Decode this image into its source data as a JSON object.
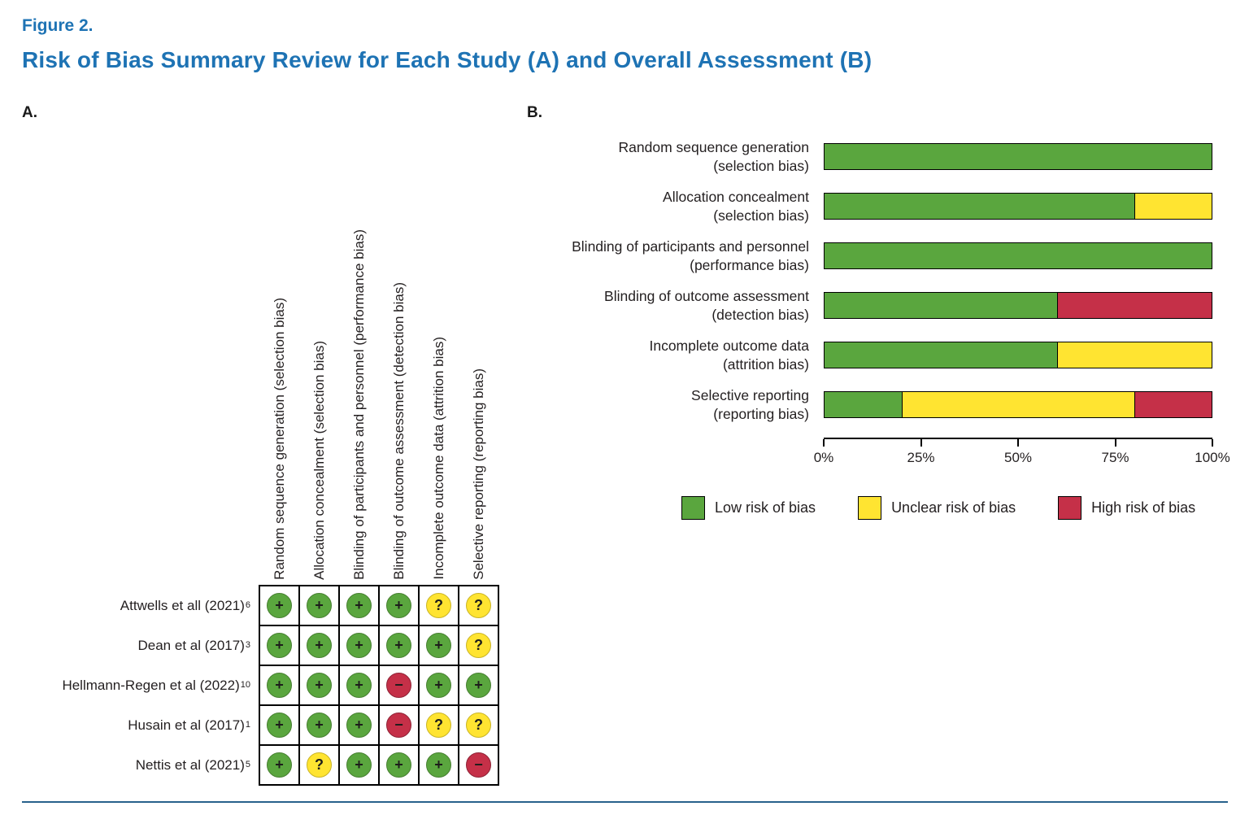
{
  "colors": {
    "low": "#5aa63e",
    "unclear": "#ffe431",
    "high": "#c53048",
    "titleBlue": "#1e73b4",
    "divider": "#28618c"
  },
  "header": {
    "figure_label": "Figure 2.",
    "title": "Risk of Bias Summary Review for Each Study (A) and Overall Assessment (B)"
  },
  "panel_a": {
    "label": "A.",
    "columns": [
      "Random sequence generation (selection bias)",
      "Allocation concealment (selection bias)",
      "Blinding of participants and personnel (performance bias)",
      "Blinding of outcome assessment (detection bias)",
      "Incomplete outcome data (attrition bias)",
      "Selective reporting (reporting bias)"
    ],
    "legend_symbols": {
      "low": "+",
      "unclear": "?",
      "high": "-"
    },
    "rows": [
      {
        "label": "Attwells et all (2021)",
        "sup": "6",
        "cells": [
          "+",
          "+",
          "+",
          "+",
          "?",
          "?"
        ]
      },
      {
        "label": "Dean et al (2017)",
        "sup": "3",
        "cells": [
          "+",
          "+",
          "+",
          "+",
          "+",
          "?"
        ]
      },
      {
        "label": "Hellmann-Regen et al (2022)",
        "sup": "10",
        "cells": [
          "+",
          "+",
          "+",
          "-",
          "+",
          "+"
        ]
      },
      {
        "label": "Husain et al (2017)",
        "sup": "1",
        "cells": [
          "+",
          "+",
          "+",
          "-",
          "?",
          "?"
        ]
      },
      {
        "label": "Nettis et al (2021)",
        "sup": "5",
        "cells": [
          "+",
          "?",
          "+",
          "+",
          "+",
          "-"
        ]
      }
    ]
  },
  "panel_b": {
    "label": "B."
  },
  "chart_data": {
    "type": "bar",
    "stacked": true,
    "orientation": "horizontal",
    "categories": [
      {
        "line1": "Random sequence generation",
        "line2": "(selection bias)"
      },
      {
        "line1": "Allocation concealment",
        "line2": "(selection bias)"
      },
      {
        "line1": "Blinding of participants and personnel",
        "line2": "(performance bias)"
      },
      {
        "line1": "Blinding of outcome assessment",
        "line2": "(detection bias)"
      },
      {
        "line1": "Incomplete outcome data",
        "line2": "(attrition bias)"
      },
      {
        "line1": "Selective reporting",
        "line2": "(reporting bias)"
      }
    ],
    "series": [
      {
        "name": "Low risk of bias",
        "color_key": "low",
        "values": [
          100,
          80,
          100,
          60,
          60,
          20
        ]
      },
      {
        "name": "Unclear risk of bias",
        "color_key": "unclear",
        "values": [
          0,
          20,
          0,
          0,
          40,
          60
        ]
      },
      {
        "name": "High risk of bias",
        "color_key": "high",
        "values": [
          0,
          0,
          0,
          40,
          0,
          20
        ]
      }
    ],
    "xlim": [
      0,
      100
    ],
    "x_ticks": [
      0,
      25,
      50,
      75,
      100
    ],
    "x_tick_labels": [
      "0%",
      "25%",
      "50%",
      "75%",
      "100%"
    ],
    "grid": false,
    "legend_position": "bottom"
  }
}
